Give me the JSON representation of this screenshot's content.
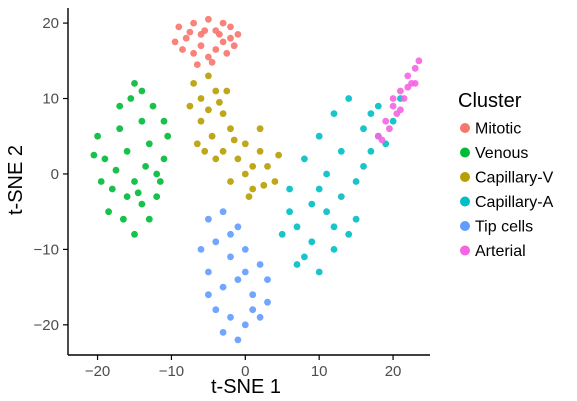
{
  "chart_data": {
    "type": "scatter",
    "title": "",
    "xlabel": "t-SNE 1",
    "ylabel": "t-SNE 2",
    "xlim": [
      -24,
      25
    ],
    "ylim": [
      -24,
      22
    ],
    "xticks": [
      -20,
      -10,
      0,
      10,
      20
    ],
    "yticks": [
      -20,
      -10,
      0,
      10,
      20
    ],
    "xtick_labels": [
      "−20",
      "−10",
      "0",
      "10",
      "20"
    ],
    "ytick_labels": [
      "−20",
      "−10",
      "0",
      "10",
      "20"
    ],
    "grid": false,
    "legend": {
      "title": "Cluster",
      "placement": "right"
    },
    "series": [
      {
        "name": "Mitotic",
        "color": "#F8766D",
        "points": [
          [
            -9,
            19.5
          ],
          [
            -8,
            18
          ],
          [
            -7,
            20
          ],
          [
            -6,
            18.5
          ],
          [
            -5,
            20.5
          ],
          [
            -4,
            19
          ],
          [
            -3,
            20
          ],
          [
            -2,
            18
          ],
          [
            -8.5,
            16.5
          ],
          [
            -7,
            16
          ],
          [
            -6,
            17
          ],
          [
            -5,
            15.5
          ],
          [
            -4,
            16.5
          ],
          [
            -3,
            17.5
          ],
          [
            -2.5,
            16
          ],
          [
            -1.5,
            17
          ],
          [
            -9.5,
            17.5
          ],
          [
            -6.5,
            14.5
          ],
          [
            -5.5,
            19
          ],
          [
            -4.5,
            14.8
          ],
          [
            -3.5,
            18.5
          ],
          [
            -2,
            19.5
          ],
          [
            -1,
            18.5
          ],
          [
            -7.5,
            18.8
          ]
        ]
      },
      {
        "name": "Venous",
        "color": "#00BA38",
        "points": [
          [
            -20,
            5
          ],
          [
            -19,
            2
          ],
          [
            -18,
            -2
          ],
          [
            -17,
            6
          ],
          [
            -16,
            3
          ],
          [
            -15,
            -1
          ],
          [
            -14,
            7
          ],
          [
            -13,
            4
          ],
          [
            -12,
            0
          ],
          [
            -18.5,
            -5
          ],
          [
            -16.5,
            -6
          ],
          [
            -15,
            -8
          ],
          [
            -14,
            -4
          ],
          [
            -13,
            -6
          ],
          [
            -12,
            -3
          ],
          [
            -11,
            2
          ],
          [
            -10.5,
            5
          ],
          [
            -17,
            9
          ],
          [
            -15.5,
            10
          ],
          [
            -14,
            11
          ],
          [
            -12.5,
            9
          ],
          [
            -11,
            7
          ],
          [
            -19.5,
            -1
          ],
          [
            -16,
            -3
          ],
          [
            -13.5,
            1
          ],
          [
            -15,
            12
          ],
          [
            -11.5,
            -1
          ],
          [
            -20.5,
            2.5
          ],
          [
            -17.5,
            0.5
          ],
          [
            -14.5,
            -2.5
          ]
        ]
      },
      {
        "name": "Capillary-V",
        "color": "#B79F00",
        "points": [
          [
            -7,
            12
          ],
          [
            -6,
            10
          ],
          [
            -5,
            13
          ],
          [
            -4,
            11
          ],
          [
            -3,
            8
          ],
          [
            -2,
            6
          ],
          [
            -6,
            7
          ],
          [
            -4.5,
            5
          ],
          [
            -3,
            3
          ],
          [
            -1,
            2
          ],
          [
            0,
            0
          ],
          [
            1,
            -2
          ],
          [
            2,
            3
          ],
          [
            3,
            1
          ],
          [
            4,
            -1
          ],
          [
            -2,
            -1
          ],
          [
            0,
            4
          ],
          [
            2,
            6
          ],
          [
            -5,
            8.5
          ],
          [
            -3.5,
            9.5
          ],
          [
            -1.5,
            4.5
          ],
          [
            1,
            1
          ],
          [
            -7.5,
            9
          ],
          [
            -6.5,
            4
          ],
          [
            -4,
            2
          ],
          [
            0.5,
            -3
          ],
          [
            2.5,
            -1.5
          ],
          [
            4.5,
            2.5
          ],
          [
            -2.5,
            11
          ],
          [
            -5.5,
            3
          ]
        ]
      },
      {
        "name": "Capillary-A",
        "color": "#00BFC4",
        "points": [
          [
            6,
            -2
          ],
          [
            8,
            2
          ],
          [
            10,
            5
          ],
          [
            12,
            8
          ],
          [
            14,
            10
          ],
          [
            16,
            6
          ],
          [
            18,
            9
          ],
          [
            20,
            7
          ],
          [
            9,
            -4
          ],
          [
            11,
            0
          ],
          [
            13,
            3
          ],
          [
            15,
            -1
          ],
          [
            17,
            3
          ],
          [
            19,
            4
          ],
          [
            7,
            -7
          ],
          [
            9,
            -9
          ],
          [
            11,
            -5
          ],
          [
            13,
            -3
          ],
          [
            15,
            -6
          ],
          [
            8,
            -11
          ],
          [
            10,
            -13
          ],
          [
            12,
            -10
          ],
          [
            14,
            -8
          ],
          [
            6,
            -5
          ],
          [
            5,
            -8
          ],
          [
            7,
            -12
          ],
          [
            10,
            -2
          ],
          [
            12,
            -7
          ],
          [
            16,
            1
          ],
          [
            18,
            5
          ],
          [
            21,
            10
          ],
          [
            17,
            8
          ]
        ]
      },
      {
        "name": "Tip cells",
        "color": "#619CFF",
        "points": [
          [
            -5,
            -6
          ],
          [
            -3,
            -5
          ],
          [
            -1,
            -7
          ],
          [
            -4,
            -9
          ],
          [
            -2,
            -11
          ],
          [
            0,
            -10
          ],
          [
            2,
            -12
          ],
          [
            -5,
            -13
          ],
          [
            -3,
            -15
          ],
          [
            -1,
            -14
          ],
          [
            1,
            -16
          ],
          [
            3,
            -14
          ],
          [
            -4,
            -18
          ],
          [
            -2,
            -19
          ],
          [
            0,
            -20
          ],
          [
            -3,
            -21
          ],
          [
            -1,
            -22
          ],
          [
            1,
            -18
          ],
          [
            -6,
            -10
          ],
          [
            -2,
            -8
          ],
          [
            2,
            -19
          ],
          [
            -5,
            -16
          ],
          [
            0,
            -13
          ],
          [
            3,
            -17
          ]
        ]
      },
      {
        "name": "Arterial",
        "color": "#F564E3",
        "points": [
          [
            18,
            5
          ],
          [
            19,
            7
          ],
          [
            20,
            9
          ],
          [
            21,
            11
          ],
          [
            22,
            13
          ],
          [
            23,
            14
          ],
          [
            19.5,
            6
          ],
          [
            20.5,
            8
          ],
          [
            21.5,
            10
          ],
          [
            22.5,
            12
          ],
          [
            18.5,
            4.5
          ],
          [
            20,
            10
          ],
          [
            23,
            12
          ],
          [
            21,
            8.5
          ],
          [
            22,
            11.5
          ],
          [
            23.5,
            15
          ]
        ]
      }
    ]
  }
}
